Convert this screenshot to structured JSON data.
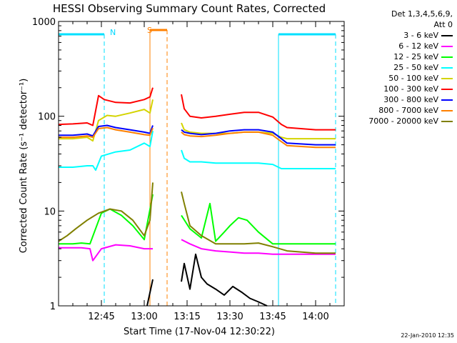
{
  "chart_data": {
    "type": "line",
    "title": "HESSI Observing Summary Count Rates, Corrected",
    "xlabel": "Start Time (17-Nov-04 12:30:22)",
    "ylabel": "Corrected Count Rate (s⁻¹ detector⁻¹)",
    "yscale": "log",
    "ylim": [
      1,
      1000
    ],
    "xlim": [
      "12:30",
      "14:10"
    ],
    "x_ticks": [
      "12:45",
      "13:00",
      "13:15",
      "13:30",
      "13:45",
      "14:00"
    ],
    "y_ticks": [
      "1",
      "10",
      "100",
      "1000"
    ],
    "legend_header": [
      "Det 1,3,4,5,6,9,",
      "Att 0"
    ],
    "legend_position": "right",
    "grid": false,
    "annotations": {
      "night_label": "N",
      "saa_label": "S",
      "timestamp": "22-Jan-2010 12:35"
    },
    "markers": {
      "night_intervals": [
        [
          "12:30",
          "12:46"
        ],
        [
          "13:47",
          "14:07"
        ]
      ],
      "saa_interval": [
        "13:02",
        "13:08"
      ],
      "gap": [
        "13:04",
        "13:12"
      ]
    },
    "series": [
      {
        "name": "3 - 6 keV",
        "color": "#000000",
        "x": [
          "13:01",
          "13:03",
          "13:13",
          "13:14",
          "13:16",
          "13:18",
          "13:20",
          "13:22",
          "13:25",
          "13:28",
          "13:31",
          "13:34",
          "13:37",
          "13:40",
          "13:43"
        ],
        "y": [
          1.0,
          1.9,
          1.8,
          2.8,
          1.5,
          3.5,
          2.0,
          1.7,
          1.5,
          1.3,
          1.6,
          1.4,
          1.2,
          1.1,
          1.0
        ]
      },
      {
        "name": "6 - 12 keV",
        "color": "#ff00ff",
        "x": [
          "12:30",
          "12:35",
          "12:38",
          "12:41",
          "12:42",
          "12:45",
          "12:50",
          "12:55",
          "13:00",
          "13:03",
          "13:13",
          "13:16",
          "13:20",
          "13:25",
          "13:30",
          "13:35",
          "13:40",
          "13:45",
          "13:50",
          "13:55",
          "14:00",
          "14:07"
        ],
        "y": [
          4.1,
          4.1,
          4.1,
          4.0,
          3.0,
          4.0,
          4.4,
          4.3,
          4.0,
          4.0,
          5.0,
          4.5,
          4.0,
          3.8,
          3.7,
          3.6,
          3.6,
          3.5,
          3.5,
          3.5,
          3.5,
          3.5
        ]
      },
      {
        "name": "12 - 25 keV",
        "color": "#00ff00",
        "x": [
          "12:30",
          "12:35",
          "12:38",
          "12:41",
          "12:45",
          "12:48",
          "12:52",
          "12:56",
          "13:00",
          "13:03",
          "13:13",
          "13:16",
          "13:20",
          "13:23",
          "13:25",
          "13:28",
          "13:30",
          "13:33",
          "13:36",
          "13:40",
          "13:45",
          "13:50",
          "14:00",
          "14:07"
        ],
        "y": [
          4.5,
          4.5,
          4.6,
          4.5,
          9.5,
          10.5,
          9.0,
          7.0,
          5.0,
          15.0,
          9.0,
          6.5,
          5.2,
          12.0,
          4.8,
          6.0,
          7.0,
          8.5,
          8.0,
          6.0,
          4.5,
          4.5,
          4.5,
          4.5
        ]
      },
      {
        "name": "25 - 50 keV",
        "color": "#00ffff",
        "x": [
          "12:30",
          "12:35",
          "12:40",
          "12:42",
          "12:43",
          "12:45",
          "12:50",
          "12:55",
          "13:00",
          "13:02",
          "13:03",
          "13:13",
          "13:14",
          "13:16",
          "13:20",
          "13:25",
          "13:30",
          "13:35",
          "13:40",
          "13:45",
          "13:48",
          "13:50",
          "14:00",
          "14:07"
        ],
        "y": [
          29,
          29,
          30,
          30,
          27,
          38,
          42,
          44,
          52,
          48,
          70,
          44,
          36,
          33,
          33,
          32,
          32,
          32,
          32,
          31,
          28,
          28,
          28,
          28
        ]
      },
      {
        "name": "50 - 100 keV",
        "color": "#d4d400",
        "x": [
          "12:30",
          "12:35",
          "12:40",
          "12:42",
          "12:44",
          "12:47",
          "12:50",
          "12:55",
          "13:00",
          "13:02",
          "13:03",
          "13:13",
          "13:14",
          "13:16",
          "13:20",
          "13:25",
          "13:30",
          "13:35",
          "13:40",
          "13:45",
          "13:48",
          "13:50",
          "14:00",
          "14:07"
        ],
        "y": [
          58,
          58,
          60,
          55,
          90,
          102,
          100,
          108,
          118,
          108,
          150,
          85,
          72,
          68,
          66,
          66,
          66,
          68,
          68,
          66,
          60,
          58,
          58,
          58
        ]
      },
      {
        "name": "100 - 300 keV",
        "color": "#ff0000",
        "x": [
          "12:30",
          "12:35",
          "12:40",
          "12:42",
          "12:44",
          "12:46",
          "12:50",
          "12:55",
          "13:00",
          "13:02",
          "13:03",
          "13:13",
          "13:14",
          "13:16",
          "13:20",
          "13:25",
          "13:30",
          "13:35",
          "13:40",
          "13:45",
          "13:48",
          "13:50",
          "14:00",
          "14:07"
        ],
        "y": [
          82,
          83,
          85,
          80,
          165,
          150,
          140,
          138,
          150,
          160,
          200,
          170,
          120,
          100,
          96,
          100,
          105,
          110,
          110,
          98,
          82,
          76,
          72,
          72
        ]
      },
      {
        "name": "300 - 800 keV",
        "color": "#0000ff",
        "x": [
          "12:30",
          "12:35",
          "12:40",
          "12:42",
          "12:44",
          "12:47",
          "12:50",
          "12:55",
          "13:00",
          "13:02",
          "13:03",
          "13:13",
          "13:14",
          "13:16",
          "13:20",
          "13:25",
          "13:30",
          "13:35",
          "13:40",
          "13:45",
          "13:48",
          "13:50",
          "14:00",
          "14:07"
        ],
        "y": [
          63,
          63,
          65,
          62,
          78,
          80,
          76,
          72,
          68,
          66,
          80,
          72,
          68,
          66,
          64,
          66,
          70,
          72,
          72,
          68,
          58,
          52,
          50,
          50
        ]
      },
      {
        "name": "800 - 7000 keV",
        "color": "#ff8000",
        "x": [
          "12:30",
          "12:35",
          "12:40",
          "12:42",
          "12:44",
          "12:47",
          "12:50",
          "12:55",
          "13:00",
          "13:02",
          "13:03",
          "13:13",
          "13:14",
          "13:16",
          "13:20",
          "13:25",
          "13:30",
          "13:35",
          "13:40",
          "13:45",
          "13:48",
          "13:50",
          "14:00",
          "14:07"
        ],
        "y": [
          60,
          60,
          62,
          60,
          74,
          76,
          72,
          68,
          64,
          63,
          75,
          68,
          64,
          62,
          61,
          63,
          66,
          68,
          68,
          63,
          54,
          49,
          47,
          47
        ]
      },
      {
        "name": "7000 - 20000 keV",
        "color": "#808000",
        "x": [
          "12:30",
          "12:33",
          "12:36",
          "12:40",
          "12:44",
          "12:48",
          "12:52",
          "12:56",
          "13:00",
          "13:02",
          "13:03",
          "13:13",
          "13:14",
          "13:16",
          "13:20",
          "13:25",
          "13:30",
          "13:35",
          "13:40",
          "13:45",
          "13:50",
          "14:00",
          "14:07"
        ],
        "y": [
          4.8,
          5.5,
          6.5,
          8.0,
          9.5,
          10.5,
          10.0,
          8.0,
          5.5,
          8.0,
          20.0,
          16.0,
          12.0,
          7.0,
          5.5,
          4.5,
          4.5,
          4.5,
          4.6,
          4.2,
          3.8,
          3.6,
          3.6
        ]
      }
    ]
  }
}
